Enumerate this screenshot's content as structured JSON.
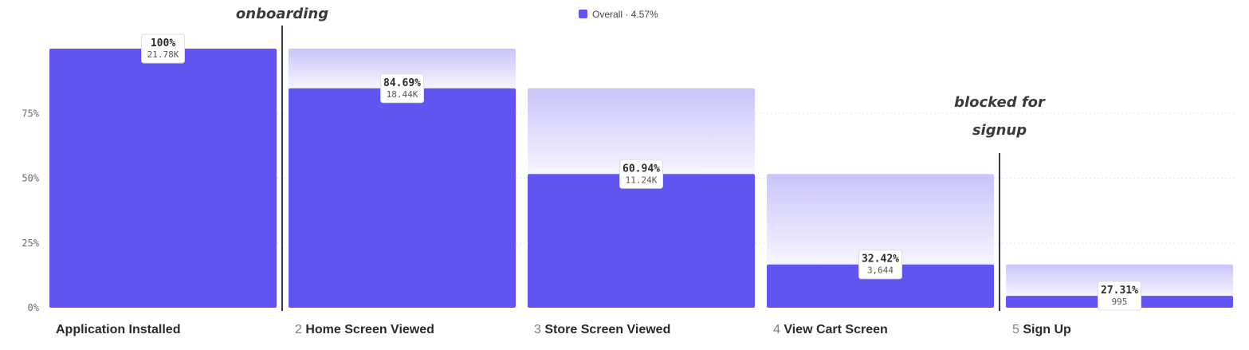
{
  "chart_data": {
    "type": "bar",
    "subtype": "funnel",
    "title": "",
    "xlabel": "",
    "ylabel": "",
    "ylim": [
      0,
      100
    ],
    "y_ticks": [
      "0%",
      "25%",
      "50%",
      "75%"
    ],
    "grid": true,
    "legend": {
      "placement": "top-center",
      "label": "Overall · 4.57%",
      "color": "#6155f1"
    },
    "steps": [
      {
        "num": "",
        "name": "Application Installed",
        "value": 100,
        "prev": 100,
        "pct_label": "100%",
        "count_label": "21.78K"
      },
      {
        "num": "2",
        "name": "Home Screen Viewed",
        "value": 84.69,
        "prev": 100,
        "pct_label": "84.69%",
        "count_label": "18.44K"
      },
      {
        "num": "3",
        "name": "Store Screen Viewed",
        "value": 51.6,
        "prev": 84.69,
        "pct_label": "60.94%",
        "count_label": "11.24K"
      },
      {
        "num": "4",
        "name": "View Cart Screen",
        "value": 16.7,
        "prev": 51.6,
        "pct_label": "32.42%",
        "count_label": "3,644"
      },
      {
        "num": "5",
        "name": "Sign Up",
        "value": 4.57,
        "prev": 16.7,
        "pct_label": "27.31%",
        "count_label": "995"
      }
    ],
    "annotations": [
      {
        "lines": [
          "onboarding"
        ],
        "after_step": 0
      },
      {
        "lines": [
          "blocked for",
          "signup"
        ],
        "after_step": 3
      }
    ]
  },
  "colors": {
    "bar": "#6155f1",
    "dropoff_top": "#c9c4fa",
    "dropoff_bottom": "#f6f5ff",
    "grid": "#e6e6e6",
    "divider": "#2f3b52"
  }
}
